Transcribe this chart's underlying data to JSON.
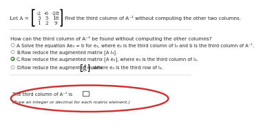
{
  "bg_color": "#ffffff",
  "matrix_label": "Let A =",
  "matrix": [
    [
      -2,
      -6,
      -28
    ],
    [
      3,
      5,
      18
    ],
    [
      1,
      2,
      9
    ]
  ],
  "find_text": "Find the third column of A⁻¹ without computing the other two columns.",
  "question": "How can the third column of A⁻¹ be found without computing the other columns?",
  "opt_a": "Solve the equation Ae₃ = b for e₃, where e₃ is the third column of I₃ and b is the third column of A⁻¹.",
  "opt_b": "Row reduce the augmented matrix [A I₃].",
  "opt_c": "Row reduce the augmented matrix [A e₃], where e₃ is the third column of I₃.",
  "opt_d_pre": "Row reduce the augmented matrix",
  "opt_d_post": ", where e₃ is the third row of I₃.",
  "answer_text": "The third column of A⁻¹ is",
  "answer_note": "(Type an integer or decimal for each matrix element.)",
  "oval_color": "#cc3333",
  "check_color": "#2d7a2d",
  "radio_color": "#aaaaaa",
  "text_color": "#222222",
  "divider_color": "#cccccc"
}
